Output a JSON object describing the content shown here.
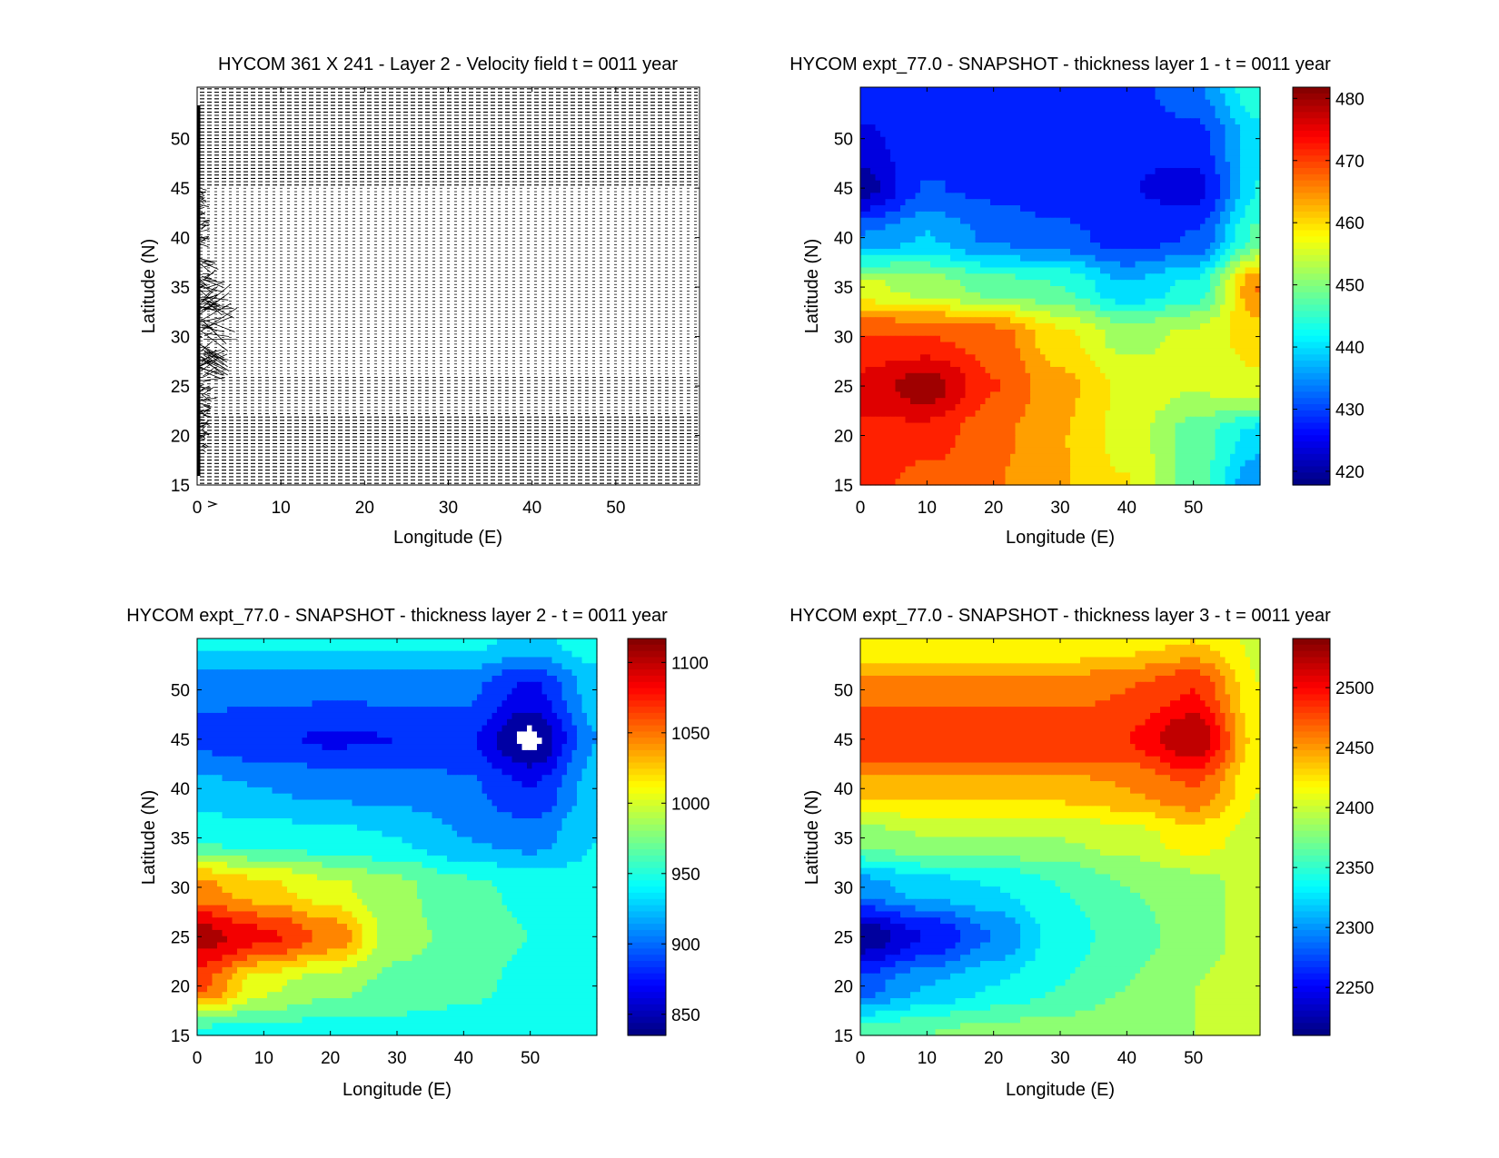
{
  "chart_data": [
    {
      "type": "quiver",
      "title": "HYCOM 361 X 241 - Layer 2 - Velocity field  t = 0011 year",
      "xlabel": "Longitude (E)",
      "ylabel": "Latitude (N)",
      "xlim": [
        0,
        60
      ],
      "ylim": [
        15,
        55.2
      ],
      "xticks": [
        "0",
        "10",
        "20",
        "30",
        "40",
        "50"
      ],
      "xtick_values": [
        0,
        10,
        20,
        30,
        40,
        50
      ],
      "yticks": [
        "15",
        "20",
        "25",
        "30",
        "35",
        "40",
        "45",
        "50"
      ],
      "ytick_values": [
        15,
        20,
        25,
        30,
        35,
        40,
        45,
        50
      ],
      "grid_size": "361 X 241",
      "reference_arrow": "arrow-icon"
    },
    {
      "type": "heatmap",
      "style": "filled-contour",
      "title": "HYCOM expt_77.0 - SNAPSHOT - thickness layer 1 - t = 0011 year",
      "xlabel": "Longitude (E)",
      "ylabel": "Latitude (N)",
      "xlim": [
        0,
        60
      ],
      "ylim": [
        15,
        55.2
      ],
      "xticks": [
        "0",
        "10",
        "20",
        "30",
        "40",
        "50"
      ],
      "xtick_values": [
        0,
        10,
        20,
        30,
        40,
        50
      ],
      "yticks": [
        "15",
        "20",
        "25",
        "30",
        "35",
        "40",
        "45",
        "50"
      ],
      "ytick_values": [
        15,
        20,
        25,
        30,
        35,
        40,
        45,
        50
      ],
      "colormap": "jet",
      "clim": [
        417.8,
        481.8
      ],
      "contour_step": 4,
      "colorbar_ticks": [
        "420",
        "430",
        "440",
        "450",
        "460",
        "470",
        "480"
      ],
      "colorbar_tick_values": [
        420,
        430,
        440,
        450,
        460,
        470,
        480
      ],
      "grid_lon": [
        0,
        10,
        20,
        30,
        40,
        50,
        60
      ],
      "grid_lat": [
        55,
        50,
        45,
        40,
        35,
        30,
        25,
        20,
        15
      ],
      "values": [
        [
          428,
          428,
          428,
          428,
          428,
          433,
          445
        ],
        [
          425,
          428,
          428,
          428,
          427,
          428,
          440
        ],
        [
          420,
          430,
          429,
          427,
          426,
          424,
          442
        ],
        [
          434,
          438,
          433,
          431,
          428,
          430,
          447
        ],
        [
          455,
          452,
          448,
          446,
          438,
          443,
          466
        ],
        [
          470,
          470,
          468,
          459,
          452,
          455,
          460
        ],
        [
          475,
          480,
          470,
          463,
          457,
          454,
          457
        ],
        [
          473,
          472,
          467,
          462,
          456,
          448,
          440
        ],
        [
          472,
          468,
          466,
          462,
          458,
          448,
          434
        ]
      ]
    },
    {
      "type": "heatmap",
      "style": "filled-contour",
      "title": "HYCOM expt_77.0 - SNAPSHOT - thickness layer 2 - t = 0011 year",
      "xlabel": "Longitude (E)",
      "ylabel": "Latitude (N)",
      "xlim": [
        0,
        60
      ],
      "ylim": [
        15,
        55.2
      ],
      "xticks": [
        "0",
        "10",
        "20",
        "30",
        "40",
        "50"
      ],
      "xtick_values": [
        0,
        10,
        20,
        30,
        40,
        50
      ],
      "yticks": [
        "15",
        "20",
        "25",
        "30",
        "35",
        "40",
        "45",
        "50"
      ],
      "ytick_values": [
        15,
        20,
        25,
        30,
        35,
        40,
        45,
        50
      ],
      "colormap": "jet",
      "clim": [
        835,
        1117
      ],
      "contour_step": 20,
      "colorbar_ticks": [
        "850",
        "900",
        "950",
        "1000",
        "1050",
        "1100"
      ],
      "colorbar_tick_values": [
        850,
        900,
        950,
        1000,
        1050,
        1100
      ],
      "grid_lon": [
        0,
        10,
        20,
        30,
        40,
        50,
        60
      ],
      "grid_lat": [
        55,
        50,
        45,
        40,
        35,
        30,
        25,
        20,
        15
      ],
      "values": [
        [
          940,
          940,
          940,
          940,
          940,
          930,
          945
        ],
        [
          900,
          900,
          900,
          900,
          900,
          870,
          925
        ],
        [
          890,
          880,
          872,
          875,
          880,
          830,
          915
        ],
        [
          920,
          915,
          910,
          905,
          900,
          875,
          925
        ],
        [
          950,
          945,
          940,
          935,
          915,
          905,
          935
        ],
        [
          1040,
          1020,
          1000,
          980,
          960,
          950,
          940
        ],
        [
          1105,
          1080,
          1050,
          980,
          970,
          955,
          945
        ],
        [
          1060,
          1000,
          980,
          970,
          960,
          950,
          945
        ],
        [
          945,
          945,
          945,
          945,
          945,
          945,
          945
        ]
      ]
    },
    {
      "type": "heatmap",
      "style": "filled-contour",
      "title": "HYCOM expt_77.0 - SNAPSHOT - thickness layer 3 - t = 0011 year",
      "xlabel": "Longitude (E)",
      "ylabel": "Latitude (N)",
      "xlim": [
        0,
        60
      ],
      "ylim": [
        15,
        55.2
      ],
      "xticks": [
        "0",
        "10",
        "20",
        "30",
        "40",
        "50"
      ],
      "xtick_values": [
        0,
        10,
        20,
        30,
        40,
        50
      ],
      "yticks": [
        "15",
        "20",
        "25",
        "30",
        "35",
        "40",
        "45",
        "50"
      ],
      "ytick_values": [
        15,
        20,
        25,
        30,
        35,
        40,
        45,
        50
      ],
      "colormap": "jet",
      "clim": [
        2210,
        2541
      ],
      "contour_step": 20,
      "colorbar_ticks": [
        "2250",
        "2300",
        "2350",
        "2400",
        "2450",
        "2500"
      ],
      "colorbar_tick_values": [
        2250,
        2300,
        2350,
        2400,
        2450,
        2500
      ],
      "grid_lon": [
        0,
        10,
        20,
        30,
        40,
        50,
        60
      ],
      "grid_lat": [
        55,
        50,
        45,
        40,
        35,
        30,
        25,
        20,
        15
      ],
      "values": [
        [
          2410,
          2410,
          2410,
          2410,
          2420,
          2430,
          2405
        ],
        [
          2460,
          2460,
          2460,
          2460,
          2470,
          2490,
          2410
        ],
        [
          2490,
          2490,
          2490,
          2490,
          2490,
          2530,
          2420
        ],
        [
          2440,
          2440,
          2440,
          2440,
          2450,
          2470,
          2410
        ],
        [
          2380,
          2390,
          2390,
          2390,
          2400,
          2420,
          2400
        ],
        [
          2300,
          2320,
          2330,
          2350,
          2370,
          2380,
          2400
        ],
        [
          2215,
          2250,
          2290,
          2340,
          2360,
          2380,
          2400
        ],
        [
          2280,
          2310,
          2330,
          2350,
          2370,
          2390,
          2400
        ],
        [
          2360,
          2370,
          2380,
          2380,
          2390,
          2390,
          2400
        ]
      ]
    }
  ]
}
